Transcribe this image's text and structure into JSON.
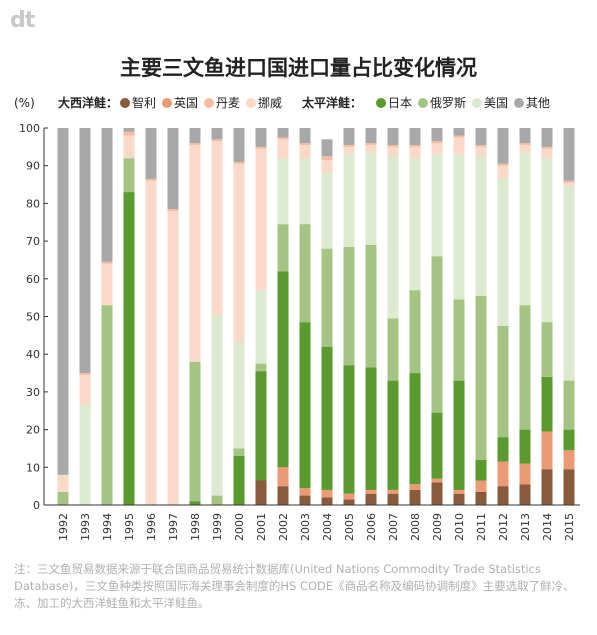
{
  "logo": "dt",
  "note": "注：三文鱼贸易数据来源于联合国商品贸易统计数据库(United Nations Commodity Trade Statistics Database)，三文鱼种类按照国际海关理事会制度的HS CODE《商品名称及编码协调制度》主要选取了鲜冷、冻、加工的大西洋鲑鱼和太平洋鲑鱼。",
  "legend": {
    "unit": "(%)",
    "atlantic_label": "大西洋鲑：",
    "pacific_label": "太平洋鲑：",
    "atlantic_items": [
      {
        "name": "智利",
        "color": "#8a5a3c"
      },
      {
        "name": "英国",
        "color": "#ec9a76"
      },
      {
        "name": "丹麦",
        "color": "#f5bca0"
      },
      {
        "name": "挪威",
        "color": "#fad9c8"
      }
    ],
    "pacific_items": [
      {
        "name": "日本",
        "color": "#5a9a2e"
      },
      {
        "name": "俄罗斯",
        "color": "#a3c482"
      },
      {
        "name": "美国",
        "color": "#dcebd0"
      }
    ],
    "other_item": {
      "name": "其他",
      "color": "#a8a8a8"
    }
  },
  "chart_data": {
    "type": "bar",
    "stacked": true,
    "title": "主要三文鱼进口国进口量占比变化情况",
    "ylabel": "(%)",
    "ylim": [
      0,
      100
    ],
    "yticks": [
      0,
      10,
      20,
      30,
      40,
      50,
      60,
      70,
      80,
      90,
      100
    ],
    "grid": false,
    "categories": [
      "1992",
      "1993",
      "1994",
      "1995",
      "1996",
      "1997",
      "1998",
      "1999",
      "2000",
      "2001",
      "2002",
      "2003",
      "2004",
      "2005",
      "2006",
      "2007",
      "2008",
      "2009",
      "2010",
      "2011",
      "2012",
      "2013",
      "2014",
      "2015"
    ],
    "series": [
      {
        "name": "智利",
        "values": [
          0,
          0,
          0,
          0,
          0,
          0,
          0,
          0,
          0,
          6.5,
          5,
          2.5,
          2,
          1.5,
          3,
          3,
          4,
          6,
          3,
          3.5,
          5,
          5.5,
          9.5,
          9.5
        ]
      },
      {
        "name": "英国",
        "values": [
          0,
          0,
          0,
          0,
          0,
          0,
          0,
          0,
          0,
          0,
          5,
          2,
          2,
          1.5,
          1,
          1,
          1.5,
          1,
          1,
          3,
          6.5,
          5.5,
          10,
          5
        ]
      },
      {
        "name": "日本",
        "values": [
          0,
          0,
          0,
          83,
          0,
          0,
          1,
          0,
          13,
          29,
          52,
          44,
          38,
          34,
          32.5,
          29,
          29.5,
          17.5,
          29,
          5.5,
          6.5,
          9,
          14.5,
          5.5
        ]
      },
      {
        "name": "俄罗斯",
        "values": [
          3.5,
          0,
          53,
          9,
          0,
          0,
          37,
          2.5,
          2,
          2,
          12.5,
          26,
          26,
          31.5,
          32.5,
          16.5,
          22,
          41.5,
          21.5,
          43.5,
          29.5,
          33,
          14.5,
          13
        ]
      },
      {
        "name": "美国",
        "values": [
          0,
          26.5,
          0,
          0,
          0,
          0,
          0,
          48,
          28,
          19.5,
          17.5,
          17.5,
          20,
          24.5,
          24.5,
          43,
          35,
          27,
          38.5,
          37,
          39,
          40.5,
          43.5,
          51.5
        ]
      },
      {
        "name": "挪威",
        "values": [
          4.5,
          8,
          11,
          6,
          86,
          78,
          57.5,
          46,
          47.5,
          37.5,
          5,
          3.5,
          3.5,
          2,
          2,
          2.5,
          3,
          3,
          4.5,
          2.5,
          3.5,
          2,
          2.5,
          1
        ]
      },
      {
        "name": "丹麦",
        "values": [
          0,
          0.5,
          0.5,
          1,
          0.5,
          0.5,
          0.5,
          0.5,
          0.5,
          0.5,
          0.5,
          0.5,
          1,
          0.5,
          0.5,
          0.5,
          0.5,
          0.5,
          0.5,
          0.5,
          0.5,
          0.5,
          0.5,
          0.5
        ]
      },
      {
        "name": "其他",
        "values": [
          92,
          65,
          35.5,
          1,
          13.5,
          21.5,
          4,
          3,
          9,
          5,
          2.5,
          4,
          4.5,
          4.5,
          4,
          4.5,
          4.5,
          3.5,
          2,
          4.5,
          9.5,
          4,
          5,
          14
        ]
      }
    ]
  }
}
